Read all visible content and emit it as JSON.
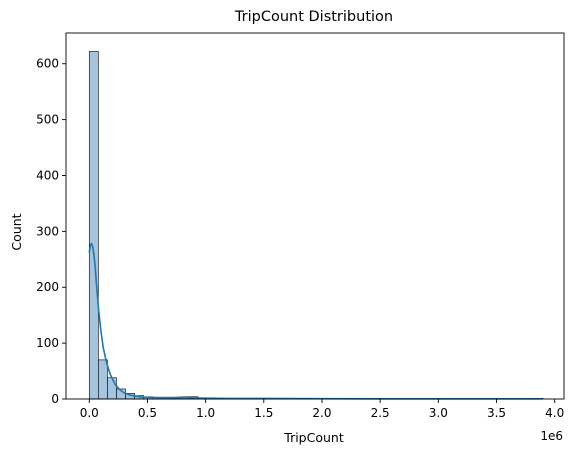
{
  "chart_data": {
    "type": "bar",
    "title": "TripCount Distribution",
    "xlabel": "TripCount",
    "ylabel": "Count",
    "x_offset_label": "1e6",
    "x_scale": 1000000,
    "xlim": [
      -200000,
      4080000
    ],
    "ylim": [
      0,
      655
    ],
    "x_ticks": [
      0,
      500000,
      1000000,
      1500000,
      2000000,
      2500000,
      3000000,
      3500000,
      4000000
    ],
    "x_tick_labels": [
      "0.0",
      "0.5",
      "1.0",
      "1.5",
      "2.0",
      "2.5",
      "3.0",
      "3.5",
      "4.0"
    ],
    "y_ticks": [
      0,
      100,
      200,
      300,
      400,
      500,
      600
    ],
    "y_tick_labels": [
      "0",
      "100",
      "200",
      "300",
      "400",
      "500",
      "600"
    ],
    "grid": false,
    "bin_start": 0,
    "bin_width": 78000,
    "bin_counts": [
      622,
      70,
      38,
      18,
      10,
      6,
      4,
      3,
      3,
      2,
      4,
      4,
      1,
      1,
      1,
      0,
      1,
      1,
      1,
      1,
      0,
      0,
      0,
      0,
      0,
      0,
      0,
      0,
      0,
      0,
      0,
      0,
      0,
      0,
      0,
      0,
      0,
      0,
      0,
      0,
      0,
      0,
      0,
      0,
      0,
      0,
      0,
      0,
      0,
      1
    ],
    "kde": {
      "x": [
        0,
        10000,
        20000,
        30000,
        40000,
        50000,
        60000,
        70000,
        80000,
        100000,
        120000,
        150000,
        180000,
        220000,
        260000,
        300000,
        350000,
        400000,
        450000,
        500000,
        600000,
        700000,
        800000,
        900000,
        1000000,
        1200000,
        1500000,
        2000000,
        2500000,
        3000000,
        3500000,
        3880000
      ],
      "y": [
        262,
        276,
        278,
        272,
        258,
        238,
        210,
        185,
        160,
        122,
        92,
        64,
        44,
        27,
        17,
        11,
        7,
        5,
        3.5,
        3,
        2.5,
        2.5,
        2.8,
        2,
        1.5,
        1,
        1,
        0.5,
        0.3,
        0.3,
        0.3,
        0.3
      ]
    },
    "colors": {
      "bar_fill": "#a6c4dd",
      "bar_edge": "#000000",
      "kde_line": "#1f77b4"
    }
  }
}
